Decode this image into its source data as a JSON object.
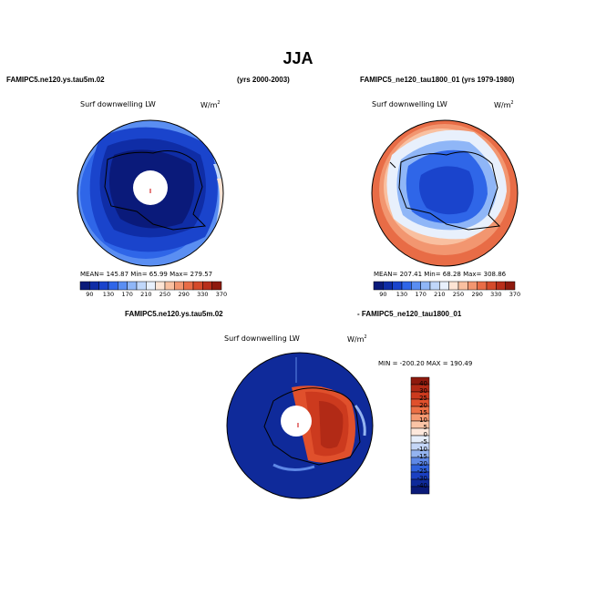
{
  "figure": {
    "title": "JJA",
    "left_case": "FAMIPC5.ne120.ys.tau5m.02",
    "left_years": "(yrs 2000-2003)",
    "right_case": "FAMIPC5_ne120_tau1800_01 (yrs 1979-1980)",
    "diff_case_a": "FAMIPC5.ne120.ys.tau5m.02",
    "diff_case_b": "- FAMIPC5_ne120_tau1800_01"
  },
  "panels": {
    "left": {
      "variable": "Surf downwelling LW",
      "units": "W/m",
      "units_exp": "2",
      "stats": "MEAN= 145.87  Min= 65.99  Max= 279.57"
    },
    "right": {
      "variable": "Surf downwelling LW",
      "units": "W/m",
      "units_exp": "2",
      "stats": "MEAN= 207.41  Min= 68.28  Max= 308.86"
    },
    "diff": {
      "variable": "Surf downwelling LW",
      "units": "W/m",
      "units_exp": "2",
      "stats": "MIN = -200.20  MAX = 190.49"
    }
  },
  "chart_data": [
    {
      "type": "heatmap",
      "projection": "south polar stereographic",
      "title": "Surf downwelling LW",
      "units": "W/m2",
      "mean": 145.87,
      "min": 65.99,
      "max": 279.57,
      "colorbar": {
        "orientation": "horizontal",
        "tick_labels": [
          "90",
          "130",
          "170",
          "210",
          "250",
          "290",
          "330",
          "370"
        ],
        "colors": [
          "#0a1a7a",
          "#0f2da6",
          "#1a44cc",
          "#2f66e8",
          "#5a8ef2",
          "#8fb6f7",
          "#c0d7fa",
          "#e8f0fc",
          "#fde4d4",
          "#f9c0a0",
          "#f29670",
          "#e86c46",
          "#d44a2a",
          "#b82e1a",
          "#8e1a0e"
        ]
      }
    },
    {
      "type": "heatmap",
      "projection": "south polar stereographic",
      "title": "Surf downwelling LW",
      "units": "W/m2",
      "mean": 207.41,
      "min": 68.28,
      "max": 308.86,
      "colorbar": {
        "orientation": "horizontal",
        "tick_labels": [
          "90",
          "130",
          "170",
          "210",
          "250",
          "290",
          "330",
          "370"
        ],
        "colors": [
          "#0a1a7a",
          "#0f2da6",
          "#1a44cc",
          "#2f66e8",
          "#5a8ef2",
          "#8fb6f7",
          "#c0d7fa",
          "#e8f0fc",
          "#fde4d4",
          "#f9c0a0",
          "#f29670",
          "#e86c46",
          "#d44a2a",
          "#b82e1a",
          "#8e1a0e"
        ]
      }
    },
    {
      "type": "heatmap",
      "projection": "south polar stereographic",
      "title": "Surf downwelling LW",
      "units": "W/m2",
      "min": -200.2,
      "max": 190.49,
      "colorbar": {
        "orientation": "vertical",
        "tick_labels": [
          "40",
          "30",
          "25",
          "20",
          "15",
          "10",
          "5",
          "0",
          "-5",
          "-10",
          "-15",
          "-20",
          "-25",
          "-30",
          "-40"
        ],
        "colors": [
          "#8e1a0e",
          "#b22a16",
          "#cc3a1e",
          "#e0502c",
          "#ec7046",
          "#f59a72",
          "#fac4a6",
          "#fde8dc",
          "#e6eefb",
          "#c4d6f7",
          "#94b4f0",
          "#5e88e6",
          "#3062dc",
          "#1a40c2",
          "#0f2a9a",
          "#0a1a78"
        ]
      }
    }
  ]
}
